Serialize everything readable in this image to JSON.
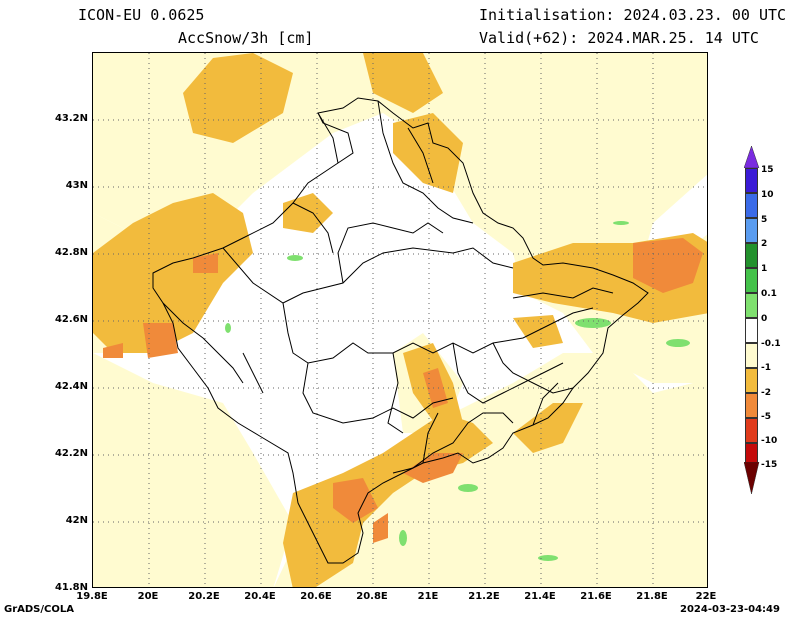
{
  "header": {
    "model": "ICON-EU 0.0625",
    "field": "AccSnow/3h [cm]",
    "init": "Initialisation: 2024.03.23. 00 UTC",
    "valid": "Valid(+62): 2024.MAR.25. 14 UTC"
  },
  "footer": {
    "left": "GrADS/COLA",
    "right": "2024-03-23-04:49"
  },
  "axes": {
    "lat_labels": [
      "43.2N",
      "43N",
      "42.8N",
      "42.6N",
      "42.4N",
      "42.2N",
      "42N",
      "41.8N"
    ],
    "lon_labels": [
      "19.8E",
      "20E",
      "20.2E",
      "20.4E",
      "20.6E",
      "20.8E",
      "21E",
      "21.2E",
      "21.4E",
      "21.6E",
      "21.8E",
      "22E"
    ]
  },
  "colorbar": {
    "labels": [
      "15",
      "10",
      "5",
      "2",
      "1",
      "0.1",
      "0",
      "-0.1",
      "-1",
      "-2",
      "-5",
      "-10",
      "-15"
    ],
    "colors": [
      "#3a1bd6",
      "#3b6be8",
      "#5a9cf0",
      "#9cc8f5",
      "#23912d",
      "#44c24a",
      "#7fe06f",
      "#ffffff",
      "#fffbd0",
      "#f2bb3d",
      "#f08a3a",
      "#e03b1c",
      "#c40a0a",
      "#7a0505"
    ],
    "top_arrow_color": "#7a2be0",
    "bottom_arrow_color": "#6b0000"
  }
}
